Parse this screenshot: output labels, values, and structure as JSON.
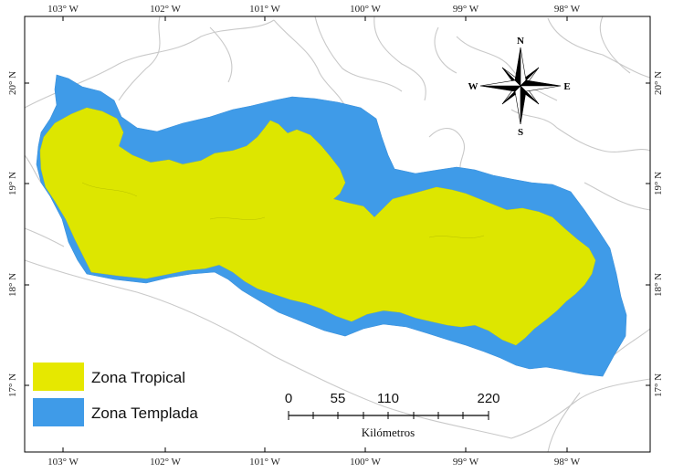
{
  "map": {
    "top_ticks": [
      "103° W",
      "102° W",
      "101° W",
      "100° W",
      "99° W",
      "98° W"
    ],
    "bottom_ticks": [
      "103° W",
      "102° W",
      "101° W",
      "100° W",
      "99° W",
      "98° W"
    ],
    "left_ticks": [
      "20° N",
      "19° N",
      "18° N",
      "17° N"
    ],
    "right_ticks": [
      "20° N",
      "19° N",
      "18° N",
      "17° N"
    ],
    "colors": {
      "tropical": "#dde600",
      "templada": "#3f9be8",
      "borders": "#c9c9c9",
      "frame": "#000000"
    }
  },
  "legend": {
    "items": [
      {
        "label": "Zona Tropical",
        "color": "#e6e800"
      },
      {
        "label": "Zona Templada",
        "color": "#3f9be8"
      }
    ]
  },
  "scale_bar": {
    "labels": [
      "0",
      "55",
      "110",
      "220"
    ],
    "unit": "Kilómetros"
  },
  "compass": {
    "n": "N",
    "s": "S",
    "e": "E",
    "w": "W"
  }
}
